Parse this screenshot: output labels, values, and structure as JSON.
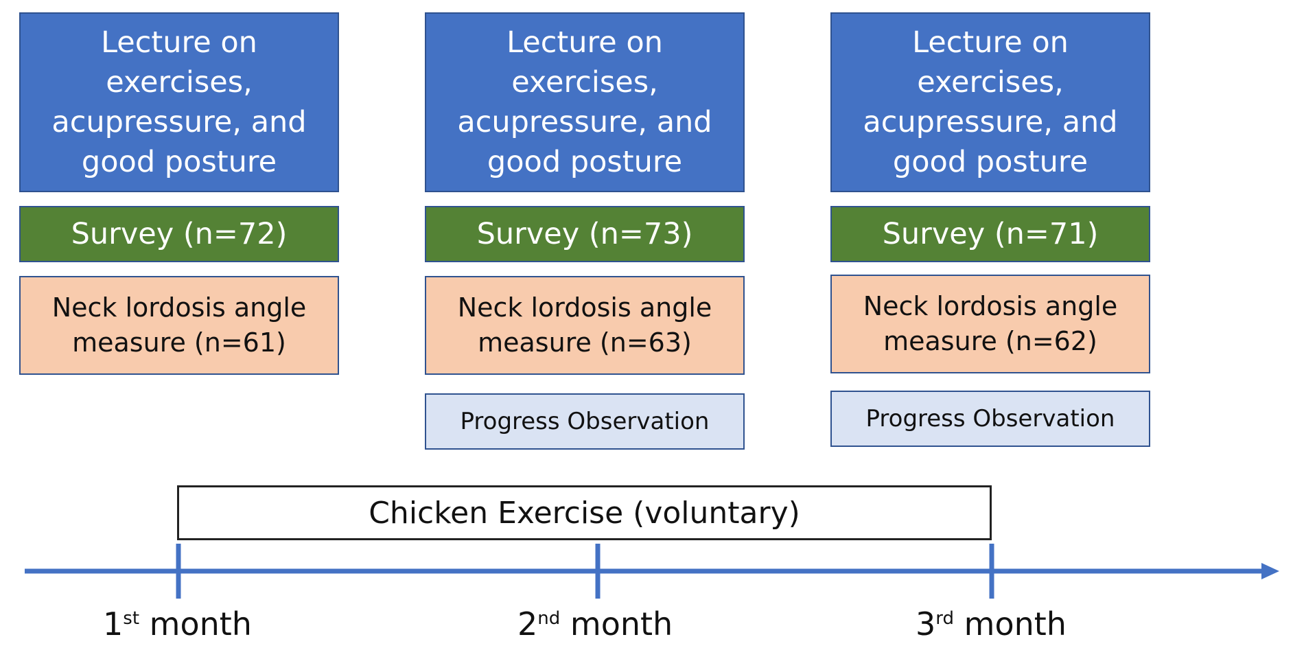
{
  "columns": [
    {
      "lecture": "Lecture on exercises, acupressure, and good posture",
      "survey": "Survey (n=72)",
      "neck": "Neck lordosis angle measure (n=61)"
    },
    {
      "lecture": "Lecture on exercises, acupressure, and good posture",
      "survey": "Survey (n=73)",
      "neck": "Neck lordosis angle measure (n=63)",
      "progress": "Progress Observation"
    },
    {
      "lecture": "Lecture on exercises, acupressure, and good posture",
      "survey": "Survey (n=71)",
      "neck": "Neck lordosis angle measure (n=62)",
      "progress": "Progress Observation"
    }
  ],
  "chicken_exercise": "Chicken Exercise (voluntary)",
  "months": [
    {
      "num": "1",
      "suffix": "st",
      "word": " month"
    },
    {
      "num": "2",
      "suffix": "nd",
      "word": " month"
    },
    {
      "num": "3",
      "suffix": "rd",
      "word": " month"
    }
  ],
  "colors": {
    "lecture": "#4472c4",
    "survey": "#548235",
    "neck": "#f8cbad",
    "progress": "#dae3f3",
    "timeline": "#4472c4"
  }
}
